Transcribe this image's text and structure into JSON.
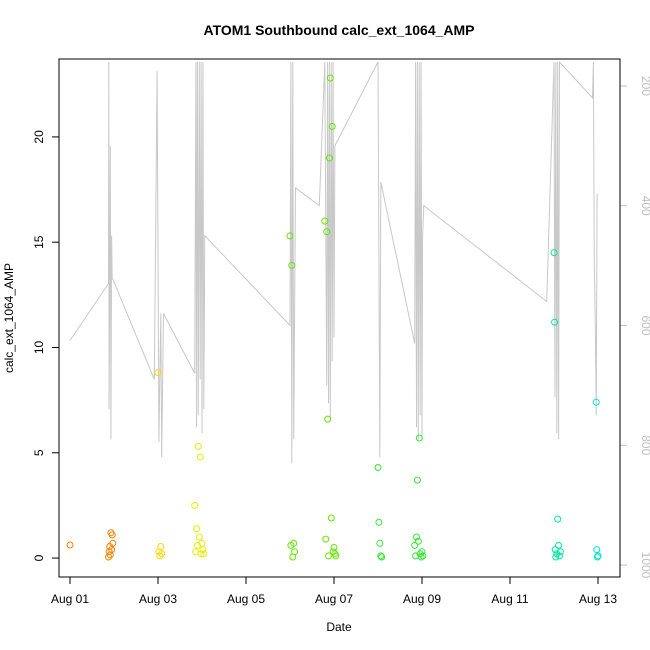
{
  "chart_data": {
    "type": "scatter",
    "title": "ATOM1 Southbound calc_ext_1064_AMP",
    "xlabel": "Date",
    "ylabel": "calc_ext_1064_AMP",
    "xlim": [
      "2021-07-31T18:00",
      "2021-08-13T12:00"
    ],
    "ylim": [
      -0.9,
      23.7
    ],
    "x_ticks": [
      "Aug 01",
      "Aug 03",
      "Aug 05",
      "Aug 07",
      "Aug 09",
      "Aug 11",
      "Aug 13"
    ],
    "x_tick_values": [
      "2021-08-01",
      "2021-08-03",
      "2021-08-05",
      "2021-08-07",
      "2021-08-09",
      "2021-08-11",
      "2021-08-13"
    ],
    "y_ticks": [
      0,
      5,
      10,
      15,
      20
    ],
    "right_axis": {
      "ticks": [
        200,
        400,
        600,
        800,
        1000
      ],
      "lim": [
        1020,
        155
      ],
      "color": "#bfbfbf"
    },
    "grid": false,
    "line_series": {
      "color": "#c8c8c8",
      "points": [
        [
          "2021-08-01T00:00",
          625
        ],
        [
          "2021-08-01T21:00",
          530
        ],
        [
          "2021-08-01T21:10",
          160
        ],
        [
          "2021-08-01T21:20",
          740
        ],
        [
          "2021-08-01T22:00",
          300
        ],
        [
          "2021-08-01T22:20",
          790
        ],
        [
          "2021-08-01T22:40",
          450
        ],
        [
          "2021-08-01T23:00",
          520
        ],
        [
          "2021-08-02T22:00",
          690
        ],
        [
          "2021-08-02T23:30",
          175
        ],
        [
          "2021-08-03T00:30",
          795
        ],
        [
          "2021-08-03T01:30",
          580
        ],
        [
          "2021-08-03T02:00",
          820
        ],
        [
          "2021-08-03T03:00",
          580
        ],
        [
          "2021-08-03T20:00",
          680
        ],
        [
          "2021-08-03T20:40",
          160
        ],
        [
          "2021-08-03T21:00",
          770
        ],
        [
          "2021-08-03T21:30",
          160
        ],
        [
          "2021-08-03T22:00",
          750
        ],
        [
          "2021-08-03T22:30",
          160
        ],
        [
          "2021-08-03T23:00",
          690
        ],
        [
          "2021-08-03T23:30",
          160
        ],
        [
          "2021-08-04T00:00",
          780
        ],
        [
          "2021-08-04T00:30",
          160
        ],
        [
          "2021-08-04T01:00",
          740
        ],
        [
          "2021-08-04T01:30",
          450
        ],
        [
          "2021-08-06T00:00",
          600
        ],
        [
          "2021-08-06T00:30",
          160
        ],
        [
          "2021-08-06T01:00",
          830
        ],
        [
          "2021-08-06T01:30",
          160
        ],
        [
          "2021-08-06T02:00",
          790
        ],
        [
          "2021-08-06T03:00",
          370
        ],
        [
          "2021-08-06T16:00",
          400
        ],
        [
          "2021-08-06T19:00",
          160
        ],
        [
          "2021-08-06T20:00",
          700
        ],
        [
          "2021-08-06T20:30",
          160
        ],
        [
          "2021-08-06T21:00",
          730
        ],
        [
          "2021-08-06T21:30",
          160
        ],
        [
          "2021-08-06T22:00",
          760
        ],
        [
          "2021-08-06T22:30",
          160
        ],
        [
          "2021-08-06T23:00",
          660
        ],
        [
          "2021-08-06T23:30",
          160
        ],
        [
          "2021-08-07T00:00",
          620
        ],
        [
          "2021-08-07T00:30",
          300
        ],
        [
          "2021-08-08T00:00",
          160
        ],
        [
          "2021-08-08T01:00",
          820
        ],
        [
          "2021-08-08T01:30",
          360
        ],
        [
          "2021-08-08T20:00",
          630
        ],
        [
          "2021-08-08T20:30",
          160
        ],
        [
          "2021-08-08T21:00",
          770
        ],
        [
          "2021-08-08T21:30",
          160
        ],
        [
          "2021-08-08T22:00",
          790
        ],
        [
          "2021-08-08T22:30",
          160
        ],
        [
          "2021-08-08T23:00",
          750
        ],
        [
          "2021-08-08T23:30",
          160
        ],
        [
          "2021-08-09T00:00",
          790
        ],
        [
          "2021-08-09T00:20",
          450
        ],
        [
          "2021-08-09T01:00",
          400
        ],
        [
          "2021-08-11T20:00",
          560
        ],
        [
          "2021-08-12T00:00",
          160
        ],
        [
          "2021-08-12T00:30",
          720
        ],
        [
          "2021-08-12T01:00",
          160
        ],
        [
          "2021-08-12T01:30",
          780
        ],
        [
          "2021-08-12T02:00",
          160
        ],
        [
          "2021-08-12T02:30",
          790
        ],
        [
          "2021-08-12T03:00",
          160
        ],
        [
          "2021-08-12T21:00",
          220
        ],
        [
          "2021-08-12T21:30",
          160
        ],
        [
          "2021-08-12T22:00",
          500
        ],
        [
          "2021-08-12T22:30",
          600
        ],
        [
          "2021-08-12T23:00",
          750
        ],
        [
          "2021-08-12T23:30",
          380
        ]
      ]
    },
    "points": [
      {
        "x": "2021-08-01T00:00",
        "y": 0.62,
        "color": "#ff7f00"
      },
      {
        "x": "2021-08-01T21:00",
        "y": 0.05,
        "color": "#ff7f00"
      },
      {
        "x": "2021-08-01T21:20",
        "y": 0.3,
        "color": "#ff7f00"
      },
      {
        "x": "2021-08-01T21:40",
        "y": 0.55,
        "color": "#ff7f00"
      },
      {
        "x": "2021-08-01T22:00",
        "y": 0.15,
        "color": "#ff7f00"
      },
      {
        "x": "2021-08-01T22:20",
        "y": 1.2,
        "color": "#ff7f00"
      },
      {
        "x": "2021-08-01T22:40",
        "y": 0.4,
        "color": "#ff7f00"
      },
      {
        "x": "2021-08-01T23:00",
        "y": 1.1,
        "color": "#ff7f00"
      },
      {
        "x": "2021-08-01T23:20",
        "y": 0.7,
        "color": "#ff7f00"
      },
      {
        "x": "2021-08-03T00:00",
        "y": 8.8,
        "color": "#ffd700"
      },
      {
        "x": "2021-08-03T00:30",
        "y": 0.3,
        "color": "#ffd700"
      },
      {
        "x": "2021-08-03T01:00",
        "y": 0.1,
        "color": "#ffd700"
      },
      {
        "x": "2021-08-03T01:30",
        "y": 0.55,
        "color": "#ffd700"
      },
      {
        "x": "2021-08-03T02:00",
        "y": 0.2,
        "color": "#ffd700"
      },
      {
        "x": "2021-08-03T20:00",
        "y": 2.5,
        "color": "#e6ee00"
      },
      {
        "x": "2021-08-03T20:30",
        "y": 0.3,
        "color": "#e6ee00"
      },
      {
        "x": "2021-08-03T21:00",
        "y": 1.4,
        "color": "#e6ee00"
      },
      {
        "x": "2021-08-03T21:30",
        "y": 0.6,
        "color": "#e6ee00"
      },
      {
        "x": "2021-08-03T22:00",
        "y": 5.3,
        "color": "#e6ee00"
      },
      {
        "x": "2021-08-03T22:30",
        "y": 1.0,
        "color": "#e6ee00"
      },
      {
        "x": "2021-08-03T23:00",
        "y": 4.8,
        "color": "#e6ee00"
      },
      {
        "x": "2021-08-03T23:30",
        "y": 0.2,
        "color": "#e6ee00"
      },
      {
        "x": "2021-08-04T00:00",
        "y": 0.7,
        "color": "#e6ee00"
      },
      {
        "x": "2021-08-04T00:30",
        "y": 0.4,
        "color": "#e6ee00"
      },
      {
        "x": "2021-08-04T01:00",
        "y": 0.2,
        "color": "#e6ee00"
      },
      {
        "x": "2021-08-06T00:00",
        "y": 15.3,
        "color": "#66e600"
      },
      {
        "x": "2021-08-06T00:30",
        "y": 0.6,
        "color": "#66e600"
      },
      {
        "x": "2021-08-06T01:00",
        "y": 13.9,
        "color": "#66e600"
      },
      {
        "x": "2021-08-06T01:30",
        "y": 0.05,
        "color": "#66e600"
      },
      {
        "x": "2021-08-06T02:00",
        "y": 0.7,
        "color": "#66e600"
      },
      {
        "x": "2021-08-06T02:30",
        "y": 0.3,
        "color": "#66e600"
      },
      {
        "x": "2021-08-06T19:00",
        "y": 16.0,
        "color": "#66e600"
      },
      {
        "x": "2021-08-06T19:30",
        "y": 0.9,
        "color": "#66e600"
      },
      {
        "x": "2021-08-06T20:00",
        "y": 15.5,
        "color": "#66e600"
      },
      {
        "x": "2021-08-06T20:30",
        "y": 6.6,
        "color": "#66e600"
      },
      {
        "x": "2021-08-06T21:00",
        "y": 0.1,
        "color": "#66e600"
      },
      {
        "x": "2021-08-06T21:30",
        "y": 19.0,
        "color": "#66e600"
      },
      {
        "x": "2021-08-06T22:00",
        "y": 22.8,
        "color": "#66e600"
      },
      {
        "x": "2021-08-06T22:30",
        "y": 1.9,
        "color": "#66e600"
      },
      {
        "x": "2021-08-06T23:00",
        "y": 20.5,
        "color": "#66e600"
      },
      {
        "x": "2021-08-06T23:30",
        "y": 0.3,
        "color": "#66e600"
      },
      {
        "x": "2021-08-07T00:00",
        "y": 0.5,
        "color": "#66e600"
      },
      {
        "x": "2021-08-07T00:30",
        "y": 0.2,
        "color": "#66e600"
      },
      {
        "x": "2021-08-07T01:00",
        "y": 0.1,
        "color": "#66e600"
      },
      {
        "x": "2021-08-08T00:00",
        "y": 4.3,
        "color": "#33e633"
      },
      {
        "x": "2021-08-08T00:30",
        "y": 1.7,
        "color": "#33e633"
      },
      {
        "x": "2021-08-08T01:00",
        "y": 0.7,
        "color": "#33e633"
      },
      {
        "x": "2021-08-08T01:30",
        "y": 0.1,
        "color": "#33e633"
      },
      {
        "x": "2021-08-08T02:00",
        "y": 0.05,
        "color": "#33e633"
      },
      {
        "x": "2021-08-08T20:00",
        "y": 0.6,
        "color": "#33e633"
      },
      {
        "x": "2021-08-08T20:30",
        "y": 0.1,
        "color": "#33e633"
      },
      {
        "x": "2021-08-08T21:00",
        "y": 1.0,
        "color": "#33e633"
      },
      {
        "x": "2021-08-08T21:30",
        "y": 3.7,
        "color": "#33e633"
      },
      {
        "x": "2021-08-08T22:00",
        "y": 0.8,
        "color": "#33e633"
      },
      {
        "x": "2021-08-08T22:30",
        "y": 5.7,
        "color": "#33e633"
      },
      {
        "x": "2021-08-08T23:00",
        "y": 0.2,
        "color": "#33e633"
      },
      {
        "x": "2021-08-08T23:30",
        "y": 0.05,
        "color": "#33e633"
      },
      {
        "x": "2021-08-09T00:00",
        "y": 0.3,
        "color": "#33e633"
      },
      {
        "x": "2021-08-09T00:30",
        "y": 0.1,
        "color": "#33e633"
      },
      {
        "x": "2021-08-12T00:00",
        "y": 14.5,
        "color": "#00e6a0"
      },
      {
        "x": "2021-08-12T00:20",
        "y": 11.2,
        "color": "#00e6a0"
      },
      {
        "x": "2021-08-12T00:40",
        "y": 0.4,
        "color": "#00e6a0"
      },
      {
        "x": "2021-08-12T01:00",
        "y": 0.05,
        "color": "#00e6a0"
      },
      {
        "x": "2021-08-12T01:30",
        "y": 0.2,
        "color": "#00e6a0"
      },
      {
        "x": "2021-08-12T02:00",
        "y": 1.85,
        "color": "#00e6a0"
      },
      {
        "x": "2021-08-12T02:30",
        "y": 0.6,
        "color": "#00e6a0"
      },
      {
        "x": "2021-08-12T03:00",
        "y": 0.1,
        "color": "#00e6a0"
      },
      {
        "x": "2021-08-12T03:30",
        "y": 0.3,
        "color": "#00e6a0"
      },
      {
        "x": "2021-08-12T23:00",
        "y": 7.4,
        "color": "#00e6cc"
      },
      {
        "x": "2021-08-12T23:20",
        "y": 0.4,
        "color": "#00e6cc"
      },
      {
        "x": "2021-08-12T23:40",
        "y": 0.05,
        "color": "#00e6cc"
      },
      {
        "x": "2021-08-13T00:00",
        "y": 0.1,
        "color": "#00e6cc"
      }
    ]
  }
}
